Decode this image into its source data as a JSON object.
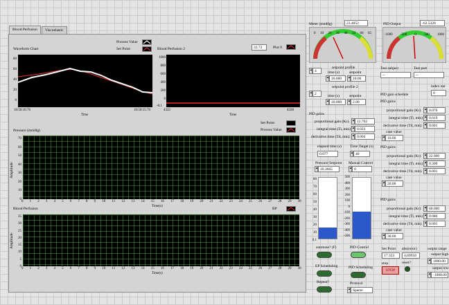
{
  "tabs": [
    "Blood Perfusion",
    "Viscoelastic"
  ],
  "waveform": {
    "title": "Waveform Chart",
    "legend": [
      "Process Value",
      "Set Point"
    ],
    "y_ticks": [
      "80",
      "60",
      "40",
      "20",
      "0"
    ],
    "x_start": "10:50:10.76",
    "x_end": "10:50:15.76",
    "x_label": "Time"
  },
  "bp2": {
    "title": "Blood Perfusion 2",
    "value": "33.72",
    "plot_label": "Plot 0",
    "y_ticks": [
      "1000",
      "800",
      "600",
      "400",
      "200",
      "0",
      "-0.1"
    ],
    "x_start": "4322",
    "x_end": "4328",
    "x_label": "Time"
  },
  "pressure": {
    "title": "Pressure (mmHg)",
    "legend": [
      "Set Point",
      "Process Value"
    ],
    "y_ticks": [
      "70",
      "60",
      "50",
      "40",
      "30",
      "20",
      "10",
      "0"
    ],
    "x_label": "Time(s)",
    "y_label": "Amplitude"
  },
  "perfusion": {
    "title": "Blood Perfusion",
    "legend": [
      "BP"
    ],
    "y_ticks": [
      "35",
      "30",
      "25",
      "20",
      "15",
      "10",
      "5",
      "0"
    ],
    "x_label": "Time(s)",
    "y_label": "Amplitude"
  },
  "x_ticks": [
    "0",
    "1",
    "2",
    "3",
    "4",
    "5",
    "6",
    "7",
    "8",
    "9",
    "10",
    "11",
    "12",
    "13",
    "14",
    "15",
    "16",
    "17",
    "18",
    "19",
    "20",
    "21",
    "22",
    "23",
    "24",
    "25",
    "26",
    "27",
    "28",
    "29",
    "30"
  ],
  "meter": {
    "label": "Meter (mmHg)",
    "value": "23.4052",
    "ticks": [
      "0",
      "10",
      "20",
      "30",
      "40",
      "50",
      "60",
      "65"
    ]
  },
  "pid_output": {
    "label": "PID Output",
    "value": "-62.5328",
    "ticks": [
      "-1000",
      "-500",
      "0",
      "500",
      "1000"
    ]
  },
  "setpoint_profile": {
    "title": "setpoint profile",
    "index": "4",
    "time_label": "time (s)",
    "time": "10.000",
    "sp_label": "setpoint",
    "sp": "10.00"
  },
  "setpoint_profile2": {
    "title": "setpoint profile 2",
    "index": "2",
    "time_label": "time (s)",
    "time": "10.000",
    "sp_label": "setpoint",
    "sp": "2.00"
  },
  "test": {
    "subject_label": "Test subject",
    "subject": "--",
    "part_label": "Test part",
    "part": "--",
    "index_label": "index out",
    "index": "0"
  },
  "pid_gains": {
    "title": "PID gains",
    "kc_label": "proportional gain (Kc)",
    "kc": "12.702",
    "ti_label": "integral time (Ti, min)",
    "ti": "0.022",
    "td_label": "derivative time (Td, min)",
    "td": "0.004"
  },
  "schedule": {
    "title": "PID gain schedule",
    "blocks": [
      {
        "title": "PID gains",
        "kc": "0.076",
        "ti": "0.019",
        "td": "0.001",
        "case": "10.00"
      },
      {
        "title": "PID gains",
        "kc": "22.000",
        "ti": "0.300",
        "td": "0.001",
        "case": "20.00"
      },
      {
        "title": "PID gains",
        "kc": "60.000",
        "ti": "0.080",
        "td": "0.001",
        "case": "30.00"
      }
    ],
    "kc_label": "proportional gain (Kc)",
    "ti_label": "integral time (Ti, min)",
    "td_label": "derivative time (Td, min)",
    "case_label": "case value"
  },
  "elapsed": {
    "label": "elapsed time (s)",
    "value": "0.077"
  },
  "target": {
    "label": "Time Target (s)",
    "value": "40"
  },
  "pressure_sp": {
    "label": "Pressure Setpoint",
    "value": "10.3665",
    "ticks": [
      "80",
      "70",
      "60",
      "50",
      "40",
      "30",
      "20",
      "10",
      "0.1"
    ],
    "level": 0.18
  },
  "manual": {
    "label": "Manual Control",
    "value": "0",
    "ticks": [
      "500",
      "400",
      "300",
      "200",
      "100",
      "0",
      "-100",
      "-200",
      "-300",
      "-400",
      "-500"
    ],
    "level": 0.44
  },
  "autotune_label": "autotune? (F)",
  "pid_control_label": "PID Control",
  "ep_sched_label": "EP Scheduling",
  "pid_sched_label": "PID Scheduling",
  "repeat_label": "Repeat?",
  "protocol": {
    "label": "Protocol",
    "value": "Sparse"
  },
  "bottom": {
    "sp_label": "Set Point",
    "sp": "17.353",
    "abs_label": "abs(error)",
    "abs": "4.69918",
    "reset_label": "reset?",
    "stop_label": "stop",
    "stop_btn": "STOP",
    "outrange_label": "output range",
    "high_label": "output high",
    "high": "1000.00",
    "low_label": "output low",
    "low": "-1000.00"
  }
}
